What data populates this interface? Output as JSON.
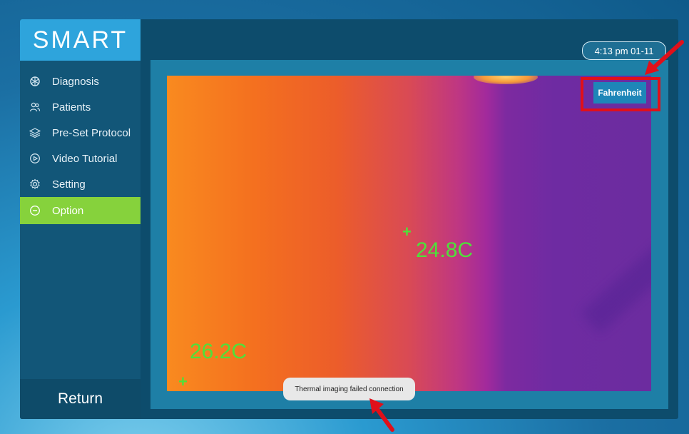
{
  "app": {
    "logo": "SMART"
  },
  "sidebar": {
    "items": [
      {
        "label": "Diagnosis",
        "icon": "diagnosis-icon",
        "active": false
      },
      {
        "label": "Patients",
        "icon": "patients-icon",
        "active": false
      },
      {
        "label": "Pre-Set Protocol",
        "icon": "layers-icon",
        "active": false
      },
      {
        "label": "Video Tutorial",
        "icon": "play-circle-icon",
        "active": false
      },
      {
        "label": "Setting",
        "icon": "gear-icon",
        "active": false
      },
      {
        "label": "Option",
        "icon": "minus-circle-icon",
        "active": true
      }
    ],
    "return_label": "Return"
  },
  "header": {
    "time": "4:13 pm 01-11"
  },
  "thermal": {
    "unit_button": "Fahrenheit",
    "readings": [
      {
        "value": "24.8C"
      },
      {
        "value": "26.2C"
      }
    ]
  },
  "toast": {
    "message": "Thermal imaging failed connection"
  },
  "colors": {
    "accent": "#86d23c",
    "brand": "#2ea4dc",
    "annotation": "#e0101a",
    "reading": "#4ee13a"
  }
}
